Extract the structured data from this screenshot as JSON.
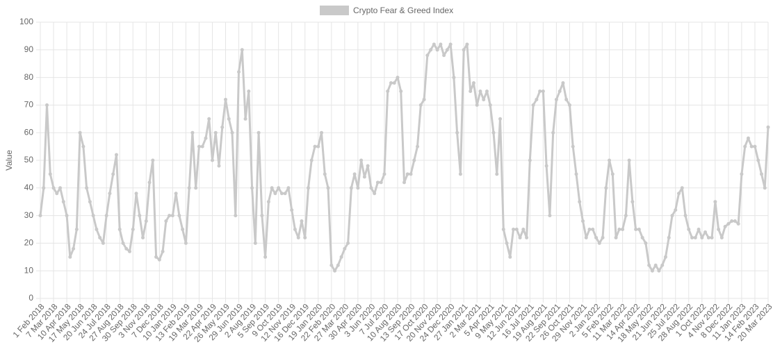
{
  "chart_data": {
    "type": "line",
    "y_label": "Value",
    "categories": [
      "1 Feb 2018",
      null,
      null,
      null,
      "7 Mar 2018",
      null,
      null,
      null,
      "10 Apr 2018",
      null,
      null,
      null,
      "17 May 2018",
      null,
      null,
      null,
      "20 Jun 2018",
      null,
      null,
      null,
      "24 Jul 2018",
      null,
      null,
      null,
      "27 Aug 2018",
      null,
      null,
      null,
      "30 Sep 2018",
      null,
      null,
      null,
      "3 Nov 2018",
      null,
      null,
      null,
      "7 Dec 2018",
      null,
      null,
      null,
      "10 Jan 2019",
      null,
      null,
      null,
      "13 Feb 2019",
      null,
      null,
      null,
      "19 Mar 2019",
      null,
      null,
      null,
      "22 Apr 2019",
      null,
      null,
      null,
      "26 May 2019",
      null,
      null,
      null,
      "29 Jun 2019",
      null,
      null,
      null,
      "2 Aug 2019",
      null,
      null,
      null,
      "5 Sep 2019",
      null,
      null,
      null,
      "9 Oct 2019",
      null,
      null,
      null,
      "12 Nov 2019",
      null,
      null,
      null,
      "16 Dec 2019",
      null,
      null,
      null,
      "19 Jan 2020",
      null,
      null,
      null,
      "22 Feb 2020",
      null,
      null,
      null,
      "27 Mar 2020",
      null,
      null,
      null,
      "30 Apr 2020",
      null,
      null,
      null,
      "3 Jun 2020",
      null,
      null,
      null,
      "7 Jul 2020",
      null,
      null,
      null,
      "10 Aug 2020",
      null,
      null,
      null,
      "13 Sep 2020",
      null,
      null,
      null,
      "17 Oct 2020",
      null,
      null,
      null,
      "20 Nov 2020",
      null,
      null,
      null,
      "24 Dec 2020",
      null,
      null,
      null,
      "27 Jan 2021",
      null,
      null,
      null,
      "2 Mar 2021",
      null,
      null,
      null,
      "5 Apr 2021",
      null,
      null,
      null,
      "9 May 2021",
      null,
      null,
      null,
      "12 Jun 2021",
      null,
      null,
      null,
      "16 Jul 2021",
      null,
      null,
      null,
      "19 Aug 2021",
      null,
      null,
      null,
      "22 Sep 2021",
      null,
      null,
      null,
      "26 Oct 2021",
      null,
      null,
      null,
      "29 Nov 2021",
      null,
      null,
      null,
      "2 Jan 2022",
      null,
      null,
      null,
      "5 Feb 2022",
      null,
      null,
      null,
      "11 Mar 2022",
      null,
      null,
      null,
      "14 Apr 2022",
      null,
      null,
      null,
      "18 May 2022",
      null,
      null,
      null,
      "21 Jun 2022",
      null,
      null,
      null,
      "25 Jul 2022",
      null,
      null,
      null,
      "28 Aug 2022",
      null,
      null,
      null,
      "1 Oct 2022",
      null,
      null,
      null,
      "4 Nov 2022",
      null,
      null,
      null,
      "8 Dec 2022",
      null,
      null,
      null,
      "11 Jan 2023",
      null,
      null,
      null,
      "14 Feb 2023",
      null,
      null,
      null,
      "20 Mar 2023"
    ],
    "series": [
      {
        "name": "Crypto Fear & Greed Index",
        "color": "#c9c9c9",
        "values": [
          30,
          40,
          70,
          45,
          40,
          38,
          40,
          35,
          30,
          15,
          18,
          25,
          60,
          55,
          40,
          35,
          30,
          25,
          22,
          20,
          30,
          38,
          45,
          52,
          25,
          20,
          18,
          17,
          25,
          38,
          30,
          22,
          28,
          42,
          50,
          15,
          14,
          17,
          28,
          30,
          30,
          38,
          30,
          25,
          20,
          40,
          60,
          40,
          55,
          55,
          58,
          65,
          50,
          60,
          48,
          62,
          72,
          65,
          60,
          30,
          82,
          90,
          65,
          75,
          40,
          20,
          60,
          30,
          15,
          35,
          40,
          38,
          40,
          38,
          38,
          40,
          32,
          25,
          22,
          28,
          22,
          40,
          50,
          55,
          55,
          60,
          45,
          40,
          12,
          10,
          12,
          15,
          18,
          20,
          40,
          45,
          40,
          50,
          44,
          48,
          40,
          38,
          42,
          42,
          45,
          75,
          78,
          78,
          80,
          75,
          42,
          45,
          45,
          50,
          55,
          70,
          72,
          88,
          90,
          92,
          90,
          92,
          88,
          90,
          92,
          80,
          60,
          45,
          90,
          92,
          75,
          78,
          70,
          75,
          72,
          75,
          70,
          60,
          45,
          65,
          25,
          20,
          15,
          25,
          25,
          22,
          25,
          22,
          50,
          70,
          72,
          75,
          75,
          48,
          30,
          60,
          72,
          75,
          78,
          72,
          70,
          55,
          45,
          35,
          28,
          22,
          25,
          25,
          22,
          20,
          22,
          40,
          50,
          45,
          22,
          25,
          25,
          30,
          50,
          35,
          25,
          25,
          22,
          20,
          12,
          10,
          12,
          10,
          12,
          15,
          22,
          30,
          32,
          38,
          40,
          30,
          25,
          22,
          22,
          25,
          22,
          24,
          22,
          22,
          35,
          25,
          22,
          26,
          27,
          28,
          28,
          27,
          45,
          55,
          58,
          55,
          55,
          50,
          45,
          40,
          62
        ]
      }
    ],
    "ylim": [
      0,
      100
    ],
    "yticks": [
      0,
      10,
      20,
      30,
      40,
      50,
      60,
      70,
      80,
      90,
      100
    ],
    "grid": true
  }
}
